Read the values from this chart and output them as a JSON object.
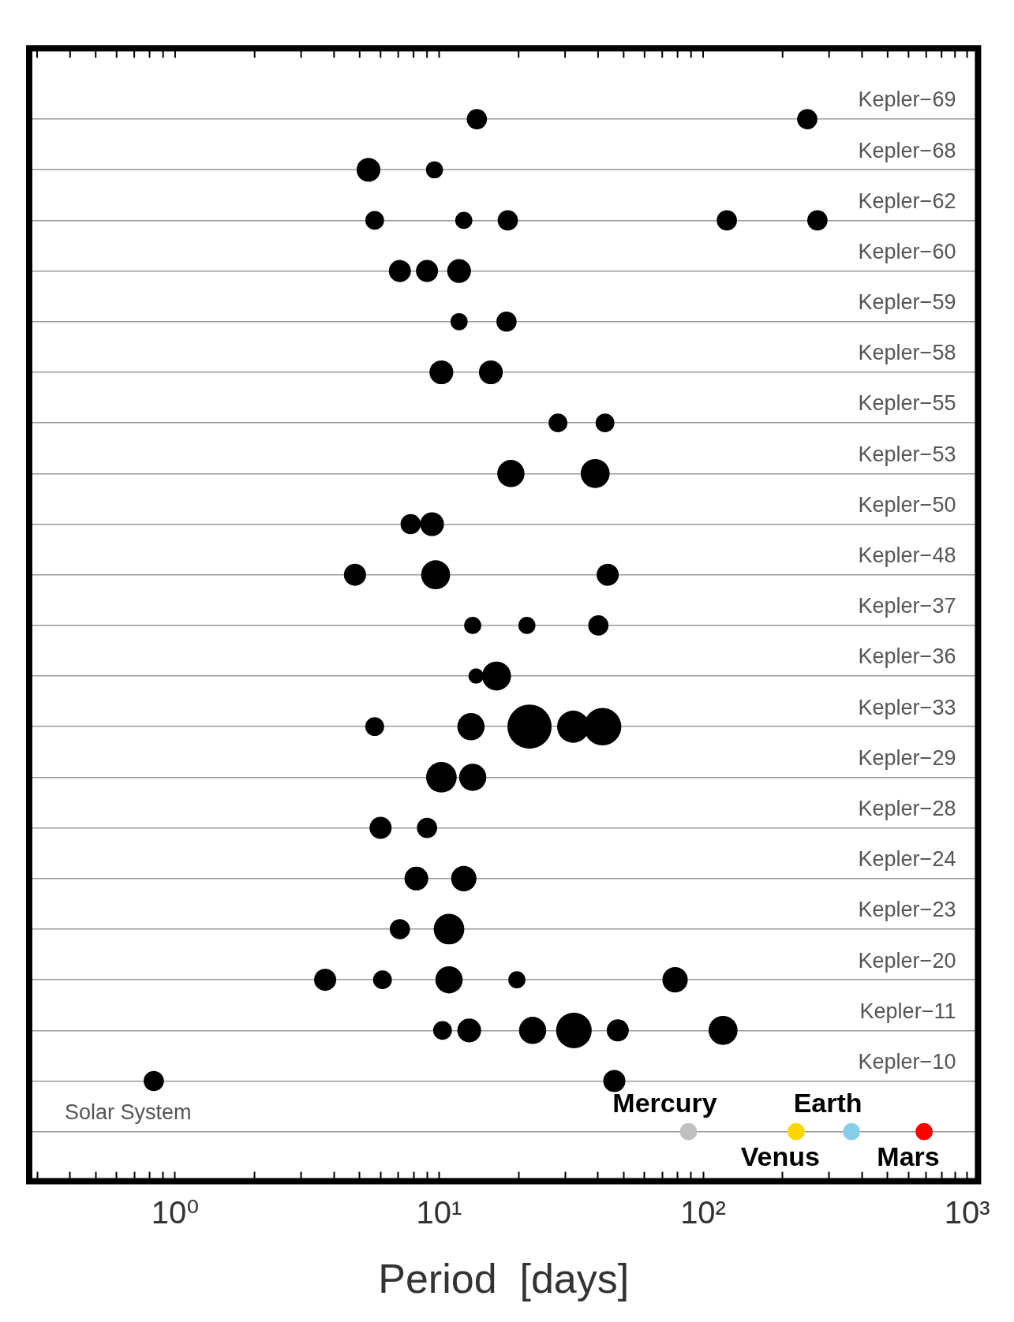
{
  "chart_data": {
    "type": "bubble",
    "orientation": "horizontal",
    "xlabel": "Period  [days]",
    "log": "x",
    "grid": "y",
    "xlim": [
      0.28,
      1100
    ],
    "xticks": [
      {
        "value": 0.3,
        "label": null
      },
      {
        "value": 0.4,
        "label": null
      },
      {
        "value": 0.5,
        "label": null
      },
      {
        "value": 0.6,
        "label": null
      },
      {
        "value": 0.7,
        "label": null
      },
      {
        "value": 0.8,
        "label": null
      },
      {
        "value": 0.9,
        "label": null
      },
      {
        "value": 1,
        "label": "10⁰"
      },
      {
        "value": 2,
        "label": null
      },
      {
        "value": 3,
        "label": null
      },
      {
        "value": 4,
        "label": null
      },
      {
        "value": 5,
        "label": null
      },
      {
        "value": 6,
        "label": null
      },
      {
        "value": 7,
        "label": null
      },
      {
        "value": 8,
        "label": null
      },
      {
        "value": 9,
        "label": null
      },
      {
        "value": 10,
        "label": "10¹"
      },
      {
        "value": 20,
        "label": null
      },
      {
        "value": 30,
        "label": null
      },
      {
        "value": 40,
        "label": null
      },
      {
        "value": 50,
        "label": null
      },
      {
        "value": 60,
        "label": null
      },
      {
        "value": 70,
        "label": null
      },
      {
        "value": 80,
        "label": null
      },
      {
        "value": 90,
        "label": null
      },
      {
        "value": 100,
        "label": "10²"
      },
      {
        "value": 200,
        "label": null
      },
      {
        "value": 300,
        "label": null
      },
      {
        "value": 400,
        "label": null
      },
      {
        "value": 500,
        "label": null
      },
      {
        "value": 600,
        "label": null
      },
      {
        "value": 700,
        "label": null
      },
      {
        "value": 800,
        "label": null
      },
      {
        "value": 900,
        "label": null
      },
      {
        "value": 1000,
        "label": "10³"
      }
    ],
    "categories": [
      "Kepler−69",
      "Kepler−68",
      "Kepler−62",
      "Kepler−60",
      "Kepler−59",
      "Kepler−58",
      "Kepler−55",
      "Kepler−53",
      "Kepler−50",
      "Kepler−48",
      "Kepler−37",
      "Kepler−36",
      "Kepler−33",
      "Kepler−29",
      "Kepler−28",
      "Kepler−24",
      "Kepler−23",
      "Kepler−20",
      "Kepler−11",
      "Kepler−10",
      "Solar System"
    ],
    "series": [
      {
        "colors": [
          "#000000",
          "#000000",
          "#000000",
          "#000000",
          "#000000",
          "#000000",
          "#000000",
          "#000000",
          "#000000",
          "#000000",
          "#000000",
          "#000000",
          "#000000",
          "#000000",
          "#000000",
          "#000000",
          "#000000",
          "#000000",
          "#000000",
          "#000000",
          "#c0c0c0"
        ],
        "values": [
          13.9,
          5.4,
          5.7,
          7.1,
          11.9,
          10.2,
          28.2,
          18.7,
          7.8,
          4.8,
          13.4,
          13.8,
          5.7,
          10.2,
          6.0,
          8.2,
          7.1,
          3.7,
          10.3,
          0.83,
          88
        ],
        "sizes": [
          0.21,
          0.29,
          0.18,
          0.25,
          0.15,
          0.29,
          0.18,
          0.38,
          0.21,
          0.25,
          0.15,
          0.12,
          0.18,
          0.48,
          0.25,
          0.29,
          0.21,
          0.25,
          0.18,
          0.21,
          0.15
        ],
        "value_labels": [
          null,
          null,
          null,
          null,
          null,
          null,
          null,
          null,
          null,
          null,
          null,
          null,
          null,
          null,
          null,
          null,
          null,
          null,
          null,
          null,
          "Mercury"
        ]
      },
      {
        "colors": [
          "#000000",
          "#000000",
          "#000000",
          "#000000",
          "#000000",
          "#000000",
          "#000000",
          "#000000",
          "#000000",
          "#000000",
          "#000000",
          "#000000",
          "#000000",
          "#000000",
          "#000000",
          "#000000",
          "#000000",
          "#000000",
          "#000000",
          "#000000",
          "#ffd700"
        ],
        "values": [
          248,
          9.6,
          12.4,
          9.0,
          18.0,
          15.7,
          42.5,
          39.0,
          9.4,
          9.7,
          21.5,
          16.5,
          13.2,
          13.4,
          9.0,
          12.4,
          10.9,
          6.1,
          13.0,
          46.1,
          225
        ],
        "sizes": [
          0.21,
          0.15,
          0.15,
          0.25,
          0.21,
          0.29,
          0.18,
          0.43,
          0.29,
          0.43,
          0.15,
          0.43,
          0.38,
          0.38,
          0.21,
          0.33,
          0.48,
          0.18,
          0.29,
          0.25,
          0.15
        ],
        "value_labels": [
          null,
          null,
          null,
          null,
          null,
          null,
          null,
          null,
          null,
          null,
          null,
          null,
          null,
          null,
          null,
          null,
          null,
          null,
          null,
          null,
          "Venus"
        ]
      },
      {
        "colors": [
          null,
          null,
          "#000000",
          "#000000",
          null,
          null,
          null,
          null,
          null,
          "#000000",
          "#000000",
          null,
          "#000000",
          null,
          null,
          null,
          null,
          "#000000",
          "#000000",
          null,
          "#87ceeb"
        ],
        "values": [
          null,
          null,
          18.2,
          11.9,
          null,
          null,
          null,
          null,
          null,
          43.5,
          40.1,
          null,
          22.0,
          null,
          null,
          null,
          null,
          10.9,
          22.6,
          null,
          365
        ],
        "sizes": [
          null,
          null,
          0.21,
          0.29,
          null,
          null,
          null,
          null,
          null,
          0.25,
          0.21,
          null,
          1,
          null,
          null,
          null,
          null,
          0.38,
          0.38,
          null,
          0.15
        ],
        "value_labels": [
          null,
          null,
          null,
          null,
          null,
          null,
          null,
          null,
          null,
          null,
          null,
          null,
          null,
          null,
          null,
          null,
          null,
          null,
          null,
          null,
          "Earth"
        ]
      },
      {
        "colors": [
          null,
          null,
          "#000000",
          null,
          null,
          null,
          null,
          null,
          null,
          null,
          null,
          null,
          "#000000",
          null,
          null,
          null,
          null,
          "#000000",
          "#000000",
          null,
          "#ff0000"
        ],
        "values": [
          null,
          null,
          123,
          null,
          null,
          null,
          null,
          null,
          null,
          null,
          null,
          null,
          32.2,
          null,
          null,
          null,
          null,
          19.7,
          32.4,
          null,
          687
        ],
        "sizes": [
          null,
          null,
          0.21,
          null,
          null,
          null,
          null,
          null,
          null,
          null,
          null,
          null,
          0.53,
          null,
          null,
          null,
          null,
          0.15,
          0.65,
          null,
          0.15
        ],
        "value_labels": [
          null,
          null,
          null,
          null,
          null,
          null,
          null,
          null,
          null,
          null,
          null,
          null,
          null,
          null,
          null,
          null,
          null,
          null,
          null,
          null,
          "Mars"
        ]
      },
      {
        "color": "#000000",
        "values": [
          null,
          null,
          271,
          null,
          null,
          null,
          null,
          null,
          null,
          null,
          null,
          null,
          41.6,
          null,
          null,
          null,
          null,
          78.3,
          47.5,
          null,
          null
        ],
        "sizes": [
          null,
          null,
          0.21,
          null,
          null,
          null,
          null,
          null,
          null,
          null,
          null,
          null,
          0.72,
          null,
          null,
          null,
          null,
          0.33,
          0.25,
          null,
          null
        ]
      },
      {
        "color": "#000000",
        "values": [
          null,
          null,
          null,
          null,
          null,
          null,
          null,
          null,
          null,
          null,
          null,
          null,
          null,
          null,
          null,
          null,
          null,
          null,
          119,
          null,
          null
        ],
        "sizes": [
          null,
          null,
          null,
          null,
          null,
          null,
          null,
          null,
          null,
          null,
          null,
          null,
          null,
          null,
          null,
          null,
          null,
          null,
          0.43,
          null,
          null
        ]
      }
    ]
  }
}
